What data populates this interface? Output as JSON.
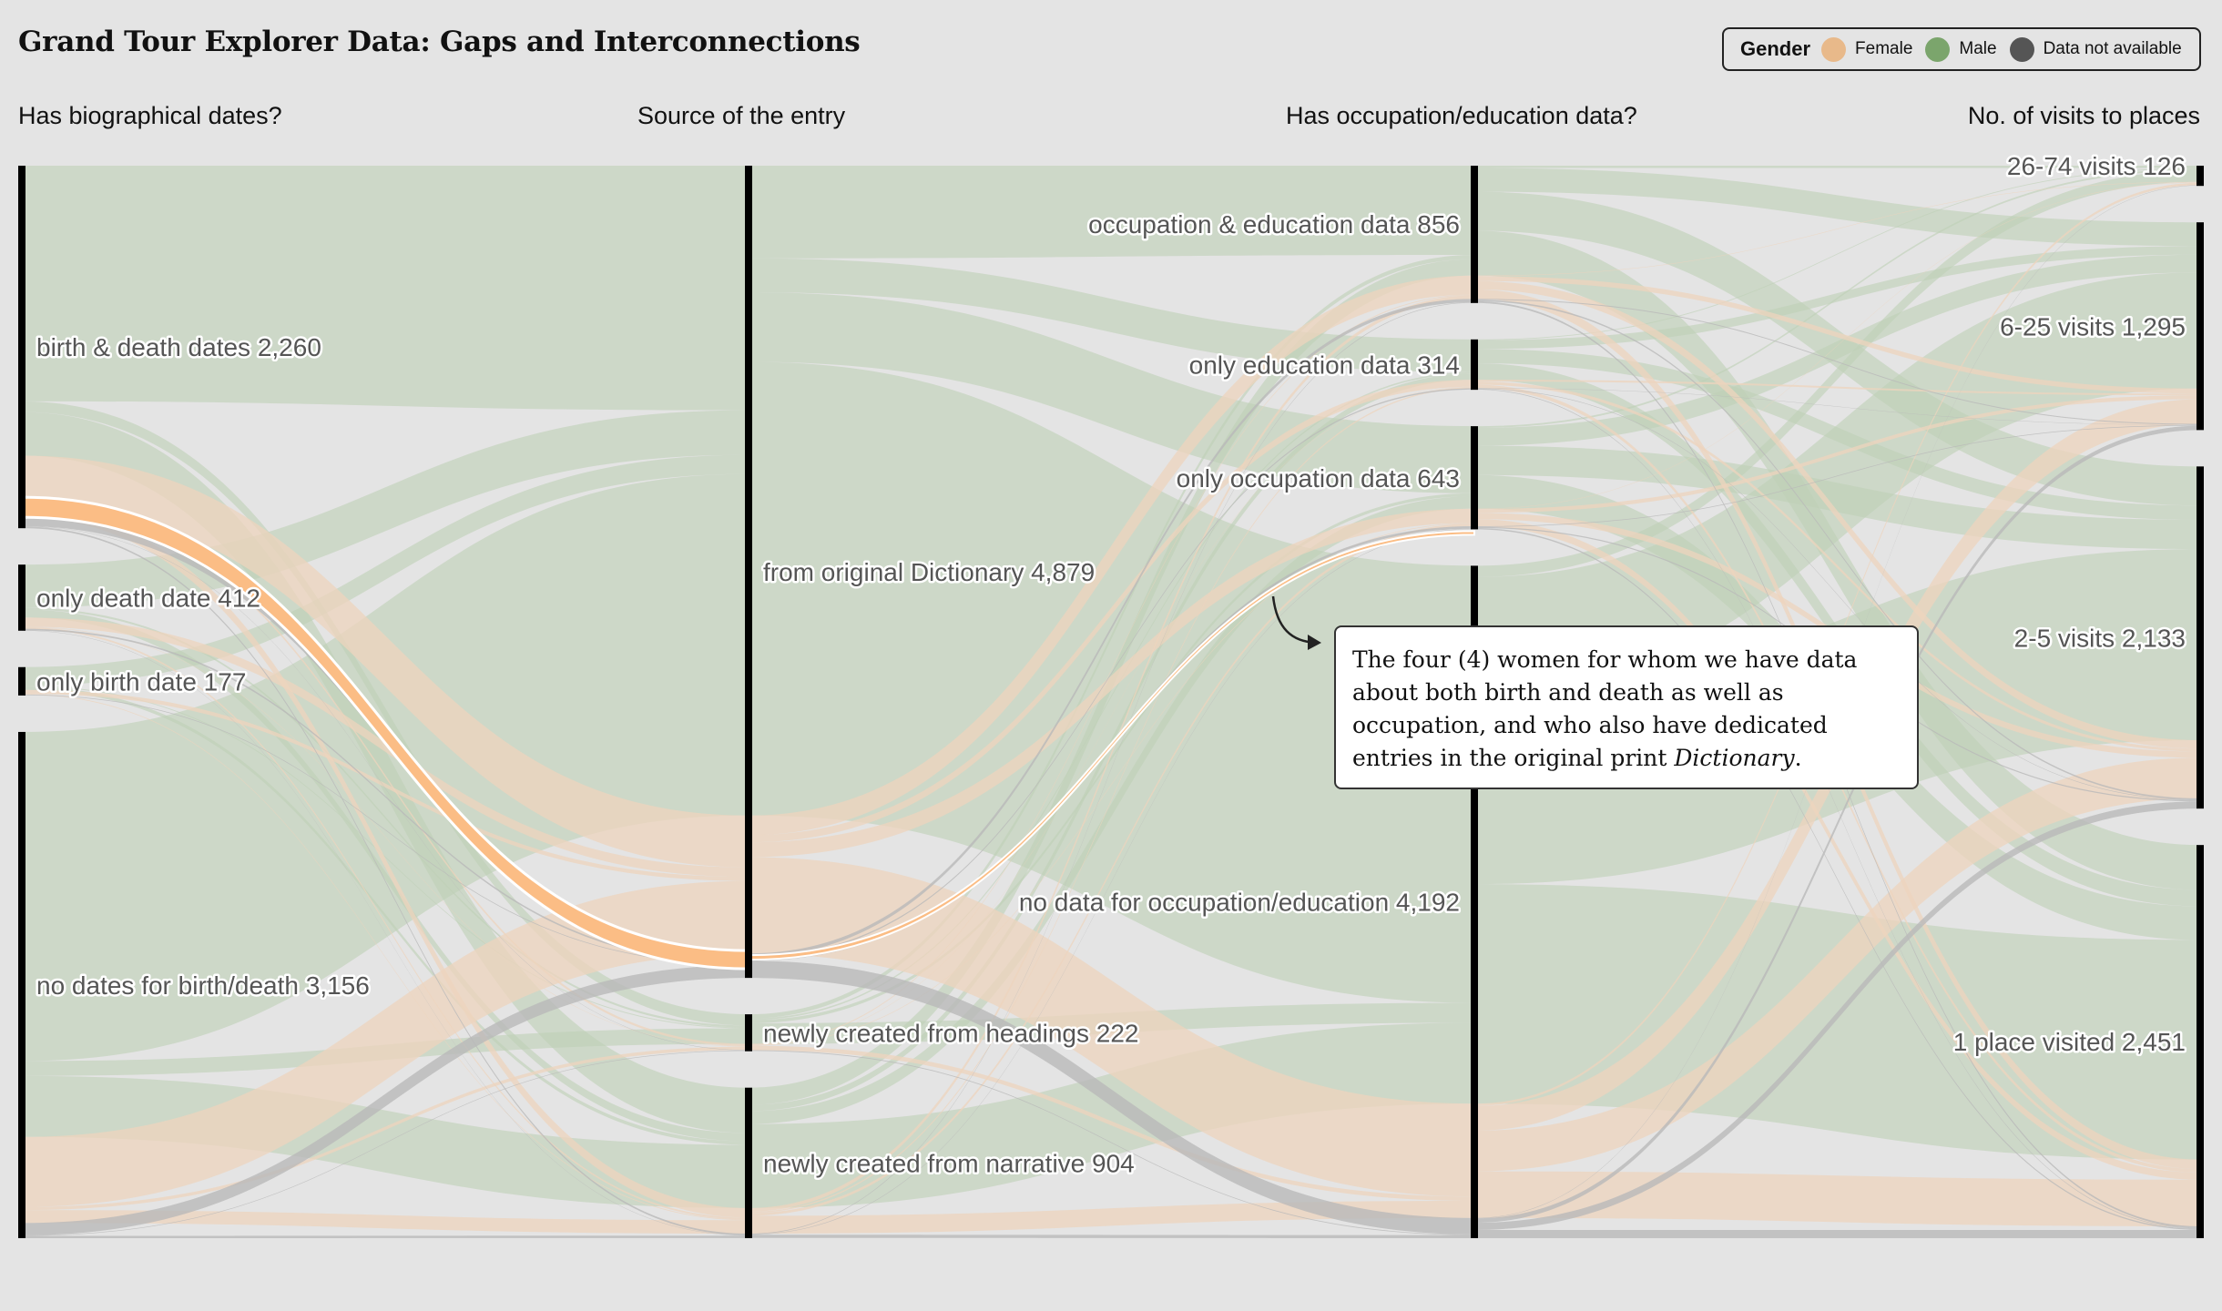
{
  "title": "Grand Tour Explorer Data: Gaps and Interconnections",
  "legend": {
    "title": "Gender",
    "items": [
      {
        "label": "Female",
        "color": "#e8b98a"
      },
      {
        "label": "Male",
        "color": "#7ba56c"
      },
      {
        "label": "Data not available",
        "color": "#555555"
      }
    ]
  },
  "colors": {
    "male_flow": "#bfd1b6",
    "female_flow": "#edd4bd",
    "unknown_flow": "#b9b9b9",
    "highlight": "#fbbd85",
    "axis_bar": "#000000"
  },
  "annotation": {
    "text_before": "The four (4) women for whom we have data about both birth and death as well as occupation, and who also have dedicated entries in the original print ",
    "italic": "Dictionary",
    "text_after": "."
  },
  "chart_data": {
    "type": "parallel-sets",
    "axes": [
      {
        "title": "Has biographical dates?",
        "categories": [
          {
            "label": "birth & death dates",
            "count": 2260,
            "count_label": "2,260"
          },
          {
            "label": "only death date",
            "count": 412,
            "count_label": "412"
          },
          {
            "label": "only birth date",
            "count": 177,
            "count_label": "177"
          },
          {
            "label": "no dates for birth/death",
            "count": 3156,
            "count_label": "3,156"
          }
        ]
      },
      {
        "title": "Source of the entry",
        "categories": [
          {
            "label": "from original Dictionary",
            "count": 4879,
            "count_label": "4,879"
          },
          {
            "label": "newly created from headings",
            "count": 222,
            "count_label": "222"
          },
          {
            "label": "newly created from narrative",
            "count": 904,
            "count_label": "904"
          }
        ]
      },
      {
        "title": "Has occupation/education data?",
        "categories": [
          {
            "label": "occupation & education data",
            "count": 856,
            "count_label": "856"
          },
          {
            "label": "only education data",
            "count": 314,
            "count_label": "314"
          },
          {
            "label": "only occupation data",
            "count": 643,
            "count_label": "643"
          },
          {
            "label": "no data for occupation/education",
            "count": 4192,
            "count_label": "4,192"
          }
        ]
      },
      {
        "title": "No. of visits to places",
        "categories": [
          {
            "label": "26-74 visits",
            "count": 126,
            "count_label": "126"
          },
          {
            "label": "6-25 visits",
            "count": 1295,
            "count_label": "1,295"
          },
          {
            "label": "2-5 visits",
            "count": 2133,
            "count_label": "2,133"
          },
          {
            "label": "1 place visited",
            "count": 2451,
            "count_label": "2,451"
          }
        ]
      }
    ],
    "highlighted_path": {
      "gender": "Female",
      "count": 4,
      "path": [
        "birth & death dates",
        "from original Dictionary",
        "only occupation data"
      ]
    }
  }
}
